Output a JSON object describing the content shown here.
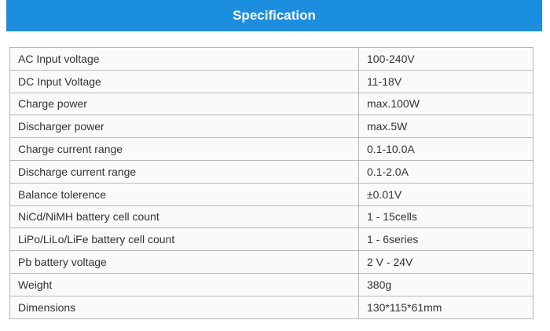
{
  "header": {
    "title": "Specification"
  },
  "table": {
    "rows": [
      [
        "AC Input voltage",
        "100-240V"
      ],
      [
        "DC Input Voltage",
        "11-18V"
      ],
      [
        "Charge power",
        "max.100W"
      ],
      [
        "Discharger power",
        "max.5W"
      ],
      [
        "Charge current range",
        "0.1-10.0A"
      ],
      [
        "Discharge current range",
        "0.1-2.0A"
      ],
      [
        "Balance tolerence",
        "±0.01V"
      ],
      [
        "NiCd/NiMH battery cell count",
        "1 - 15cells"
      ],
      [
        "LiPo/LiLo/LiFe battery cell count",
        "1 - 6series"
      ],
      [
        "Pb battery voltage",
        "2 V - 24V"
      ],
      [
        "Weight",
        "380g"
      ],
      [
        "Dimensions",
        "130*115*61mm"
      ]
    ]
  }
}
